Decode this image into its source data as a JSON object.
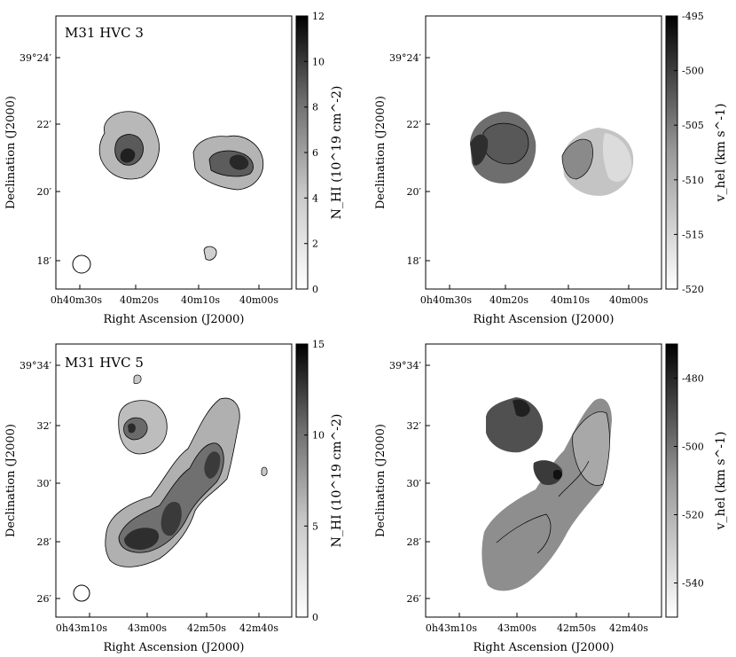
{
  "figure": {
    "xlabel": "Right Ascension (J2000)",
    "ylabel": "Declination (J2000)"
  },
  "chart_data": [
    {
      "type": "heatmap",
      "panel": "top-left",
      "title": "M31 HVC 3",
      "xlabel": "Right Ascension (J2000)",
      "ylabel": "Declination (J2000)",
      "x_ticks": [
        "0h40m30s",
        "40m20s",
        "40m10s",
        "40m00s"
      ],
      "y_ticks": [
        "39°24′",
        "22′",
        "20′",
        "18′"
      ],
      "colorbar": {
        "label": "N_HI (10^19 cm^-2)",
        "ticks": [
          "0",
          "2",
          "4",
          "6",
          "8",
          "10",
          "12"
        ],
        "range": [
          0,
          12
        ]
      },
      "clumps": [
        {
          "ra": "0h40m20s",
          "dec": "39°21′",
          "peak": 12
        },
        {
          "ra": "0h40m06s",
          "dec": "39°21′",
          "peak": 10
        },
        {
          "ra": "0h40m11s",
          "dec": "39°18′",
          "peak": 2
        }
      ],
      "beam": "circle, lower-left"
    },
    {
      "type": "heatmap",
      "panel": "top-right",
      "xlabel": "Right Ascension (J2000)",
      "ylabel": "Declination (J2000)",
      "x_ticks": [
        "0h40m30s",
        "40m20s",
        "40m10s",
        "40m00s"
      ],
      "y_ticks": [
        "39°24′",
        "22′",
        "20′",
        "18′"
      ],
      "colorbar": {
        "label": "v_hel (km s^-1)",
        "ticks": [
          "-495",
          "-500",
          "-505",
          "-510",
          "-515",
          "-520"
        ],
        "range": [
          -520,
          -495
        ]
      },
      "clumps": [
        {
          "ra": "0h40m19s",
          "dec": "39°21′",
          "v_mean": -500
        },
        {
          "ra": "0h40m06s",
          "dec": "39°21′",
          "v_mean": -514
        }
      ]
    },
    {
      "type": "heatmap",
      "panel": "bottom-left",
      "title": "M31 HVC 5",
      "xlabel": "Right Ascension (J2000)",
      "ylabel": "Declination (J2000)",
      "x_ticks": [
        "0h43m10s",
        "43m00s",
        "42m50s",
        "42m40s"
      ],
      "y_ticks": [
        "39°34′",
        "32′",
        "30′",
        "28′",
        "26′"
      ],
      "colorbar": {
        "label": "N_HI (10^19 cm^-2)",
        "ticks": [
          "0",
          "5",
          "10",
          "15"
        ],
        "range": [
          0,
          15
        ]
      },
      "clumps": [
        {
          "ra": "0h43m02s",
          "dec": "39°31.8′",
          "peak": 9
        },
        {
          "ra": "0h42m52s",
          "dec": "39°30.5′",
          "peak": 13
        },
        {
          "ra": "0h42m56s",
          "dec": "39°28.8′",
          "peak": 14
        },
        {
          "ra": "0h43m03s",
          "dec": "39°28′",
          "peak": 15
        }
      ],
      "beam": "circle, lower-left"
    },
    {
      "type": "heatmap",
      "panel": "bottom-right",
      "xlabel": "Right Ascension (J2000)",
      "ylabel": "Declination (J2000)",
      "x_ticks": [
        "0h43m10s",
        "43m00s",
        "42m50s",
        "42m40s"
      ],
      "y_ticks": [
        "39°34′",
        "32′",
        "30′",
        "28′",
        "26′"
      ],
      "colorbar": {
        "label": "v_hel (km s^-1)",
        "ticks": [
          "-480",
          "-500",
          "-520",
          "-540"
        ],
        "range": [
          -550,
          -470
        ]
      },
      "clumps": [
        {
          "ra": "0h43m00s",
          "dec": "39°32′",
          "v_mean": -490
        },
        {
          "ra": "0h42m52s",
          "dec": "39°30′",
          "v_mean": -485
        },
        {
          "ra": "0h42m55s",
          "dec": "39°28.5′",
          "v_mean": -515
        }
      ]
    }
  ]
}
